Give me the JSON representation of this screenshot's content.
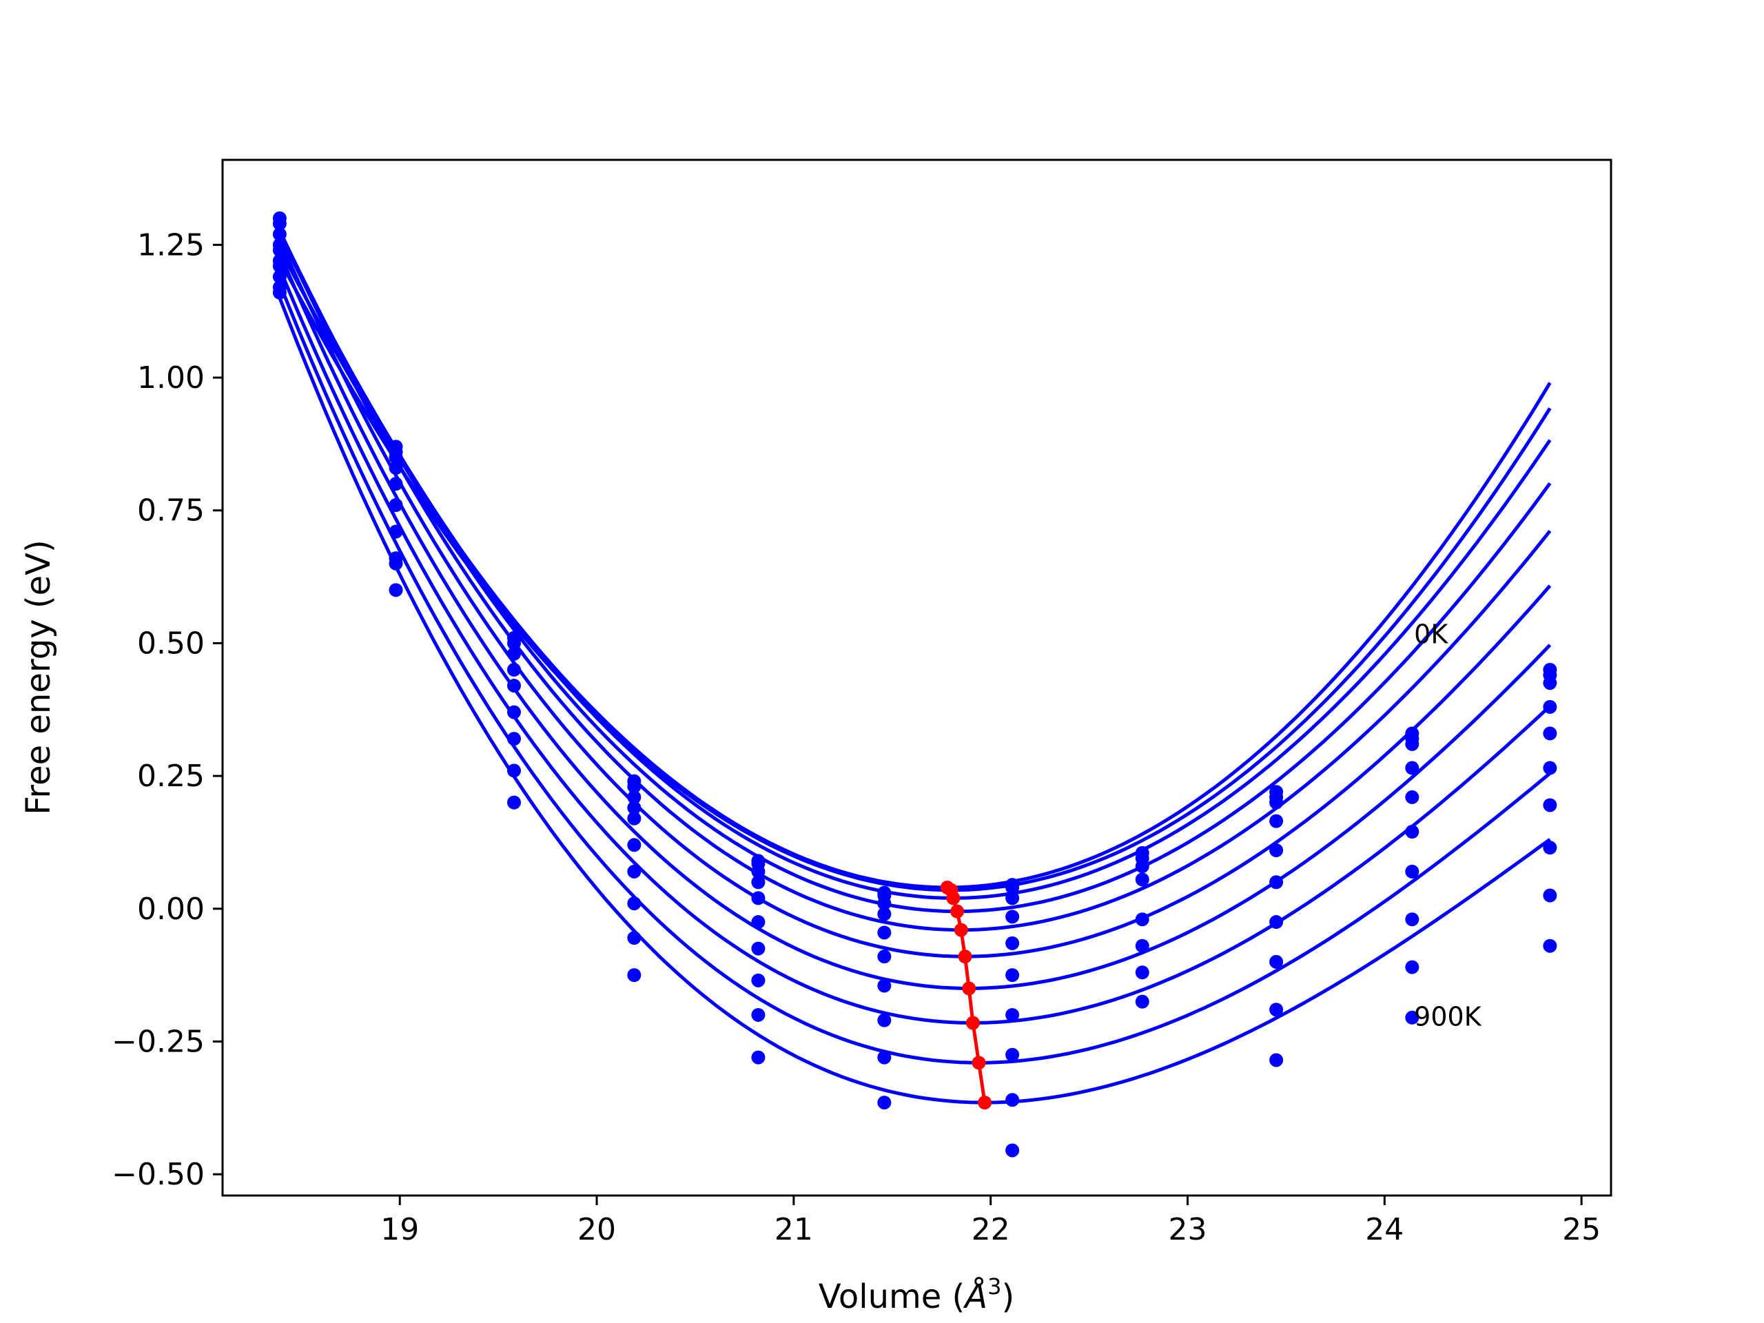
{
  "chart_data": {
    "type": "scatter",
    "title": "",
    "xlabel": "Volume (",
    "xlabel_symbol": "Å",
    "xlabel_exponent": "3",
    "xlabel_close": ")",
    "ylabel": "Free energy (eV)",
    "xlim": [
      18.1,
      25.15
    ],
    "ylim": [
      -0.54,
      1.41
    ],
    "xticks": [
      19,
      20,
      21,
      22,
      23,
      24,
      25
    ],
    "xtick_labels": [
      "19",
      "20",
      "21",
      "22",
      "23",
      "24",
      "25"
    ],
    "yticks": [
      -0.5,
      -0.25,
      0.0,
      0.25,
      0.5,
      0.75,
      1.0,
      1.25
    ],
    "ytick_labels": [
      "−0.50",
      "−0.25",
      "0.00",
      "0.25",
      "0.50",
      "0.75",
      "1.00",
      "1.25"
    ],
    "grid": false,
    "series_color": "#0000ff",
    "minima_color": "#ff0000",
    "annotations": [
      {
        "text": "0K",
        "x": 24.15,
        "y": 0.5
      },
      {
        "text": "900K",
        "x": 24.15,
        "y": -0.22
      }
    ],
    "x": [
      18.39,
      18.98,
      19.58,
      20.19,
      20.82,
      21.46,
      22.11,
      22.77,
      23.45,
      24.14,
      24.84
    ],
    "series": [
      {
        "name": "",
        "fit": {
          "v0": 21.78,
          "e0": 0.04,
          "a": 0.103,
          "b": -0.0005
        },
        "values": [
          1.3,
          0.87,
          0.51,
          0.24,
          0.09,
          0.03,
          0.045,
          0.105,
          0.22,
          0.33,
          0.45
        ]
      },
      {
        "name": "",
        "fit": {
          "v0": 21.8,
          "e0": 0.035,
          "a": 0.1,
          "b": -0.0006
        },
        "values": [
          1.29,
          0.86,
          0.5,
          0.23,
          0.085,
          0.025,
          0.04,
          0.095,
          0.21,
          0.32,
          0.44
        ]
      },
      {
        "name": "",
        "fit": {
          "v0": 21.81,
          "e0": 0.02,
          "a": 0.1,
          "b": -0.002
        },
        "values": [
          1.27,
          0.85,
          0.48,
          0.21,
          0.07,
          0.01,
          0.02,
          0.08,
          0.2,
          0.31,
          0.425
        ]
      },
      {
        "name": "",
        "fit": {
          "v0": 21.83,
          "e0": -0.005,
          "a": 0.098,
          "b": -0.003
        },
        "values": [
          1.25,
          0.83,
          0.45,
          0.19,
          0.05,
          -0.01,
          -0.015,
          0.055,
          0.165,
          0.265,
          0.38
        ]
      },
      {
        "name": "",
        "fit": {
          "v0": 21.85,
          "e0": -0.04,
          "a": 0.096,
          "b": -0.004
        },
        "values": [
          1.24,
          0.8,
          0.42,
          0.17,
          0.02,
          -0.045,
          -0.065,
          -0.02,
          0.11,
          0.21,
          0.33
        ]
      },
      {
        "name": "",
        "fit": {
          "v0": 21.87,
          "e0": -0.09,
          "a": 0.094,
          "b": -0.005
        },
        "values": [
          1.22,
          0.76,
          0.37,
          0.12,
          -0.025,
          -0.09,
          -0.125,
          -0.07,
          0.05,
          0.145,
          0.265
        ]
      },
      {
        "name": "",
        "fit": {
          "v0": 21.89,
          "e0": -0.15,
          "a": 0.092,
          "b": -0.006
        },
        "values": [
          1.21,
          0.71,
          0.32,
          0.07,
          -0.075,
          -0.145,
          -0.2,
          -0.12,
          -0.025,
          0.07,
          0.195
        ]
      },
      {
        "name": "",
        "fit": {
          "v0": 21.91,
          "e0": -0.215,
          "a": 0.09,
          "b": -0.007
        },
        "values": [
          1.19,
          0.66,
          0.26,
          0.01,
          -0.135,
          -0.21,
          -0.275,
          -0.175,
          -0.1,
          -0.02,
          0.115
        ]
      },
      {
        "name": "",
        "fit": {
          "v0": 21.94,
          "e0": -0.29,
          "a": 0.088,
          "b": -0.008
        },
        "values": [
          1.17,
          0.65,
          0.2,
          -0.055,
          -0.2,
          -0.28,
          -0.36,
          null,
          -0.19,
          -0.11,
          0.025
        ]
      },
      {
        "name": "",
        "fit": {
          "v0": 21.97,
          "e0": -0.365,
          "a": 0.086,
          "b": -0.009
        },
        "values": [
          1.16,
          0.6,
          null,
          -0.125,
          -0.28,
          -0.365,
          -0.455,
          null,
          -0.285,
          -0.205,
          -0.07
        ]
      }
    ],
    "minima": {
      "x": [
        21.78,
        21.8,
        21.81,
        21.83,
        21.85,
        21.87,
        21.89,
        21.91,
        21.94,
        21.97
      ],
      "y": [
        0.04,
        0.035,
        0.02,
        -0.005,
        -0.04,
        -0.09,
        -0.15,
        -0.215,
        -0.29,
        -0.365
      ]
    }
  }
}
